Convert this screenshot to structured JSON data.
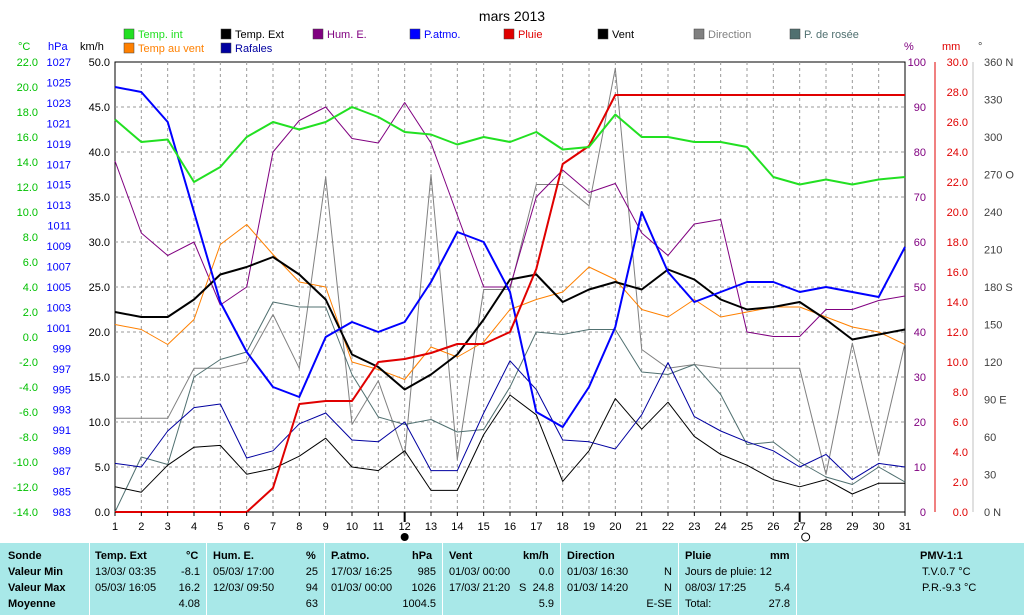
{
  "title": "mars 2013",
  "unit_labels": {
    "celsius": "°C",
    "hpa": "hPa",
    "kmh": "km/h",
    "percent": "%",
    "mm": "mm",
    "deg": "°"
  },
  "colors": {
    "temp_int": "#22e022",
    "temp_ext": "#000000",
    "hum_e": "#800080",
    "p_atmo": "#0000ff",
    "pluie": "#e00000",
    "vent": "#000000",
    "direction": "#808080",
    "p_rosee": "#507070",
    "temp_vent": "#ff8000",
    "rafales": "#0000a0",
    "grid": "#9a9a9a",
    "axis_celsius": "#00c000",
    "axis_hpa": "#0000ff",
    "axis_percent": "#800080",
    "axis_mm": "#e00000",
    "axis_deg": "#404040"
  },
  "legend": [
    {
      "label": "Temp. int",
      "color": "#22e022"
    },
    {
      "label": "Temp. Ext",
      "color": "#000000"
    },
    {
      "label": "Hum. E.",
      "color": "#800080"
    },
    {
      "label": "P.atmo.",
      "color": "#0000ff"
    },
    {
      "label": "Pluie",
      "color": "#e00000"
    },
    {
      "label": "Vent",
      "color": "#000000"
    },
    {
      "label": "Direction",
      "color": "#808080"
    },
    {
      "label": "P. de rosée",
      "color": "#507070"
    },
    {
      "label": "Temp au vent",
      "color": "#ff8000"
    },
    {
      "label": "Rafales",
      "color": "#0000a0"
    }
  ],
  "chart_data": {
    "type": "line",
    "title": "mars 2013",
    "x": [
      1,
      2,
      3,
      4,
      5,
      6,
      7,
      8,
      9,
      10,
      11,
      12,
      13,
      14,
      15,
      16,
      17,
      18,
      19,
      20,
      21,
      22,
      23,
      24,
      25,
      26,
      27,
      28,
      29,
      30,
      31
    ],
    "grid": true,
    "axes": {
      "celsius": {
        "range": [
          -14,
          22
        ],
        "ticks": [
          "22.0",
          "20.0",
          "18.0",
          "16.0",
          "14.0",
          "12.0",
          "10.0",
          "8.0",
          "6.0",
          "4.0",
          "2.0",
          "0.0",
          "-2.0",
          "-4.0",
          "-6.0",
          "-8.0",
          "-10.0",
          "-12.0",
          "-14.0"
        ]
      },
      "hpa": {
        "range": [
          983,
          1028
        ],
        "ticks": [
          "1027",
          "1025",
          "1023",
          "1021",
          "1019",
          "1017",
          "1015",
          "1013",
          "1011",
          "1009",
          "1007",
          "1005",
          "1003",
          "1001",
          "999",
          "997",
          "995",
          "993",
          "991",
          "989",
          "987",
          "985",
          "983"
        ]
      },
      "kmh": {
        "range": [
          0,
          50
        ],
        "ticks": [
          "50.0",
          "45.0",
          "40.0",
          "35.0",
          "30.0",
          "25.0",
          "20.0",
          "15.0",
          "10.0",
          "5.0",
          "0.0"
        ]
      },
      "percent": {
        "range": [
          0,
          100
        ],
        "ticks": [
          "100",
          "90",
          "80",
          "70",
          "60",
          "50",
          "40",
          "30",
          "20",
          "10",
          "0"
        ]
      },
      "mm": {
        "range": [
          0,
          30
        ],
        "ticks": [
          "30.0",
          "28.0",
          "26.0",
          "24.0",
          "22.0",
          "20.0",
          "18.0",
          "16.0",
          "14.0",
          "12.0",
          "10.0",
          "8.0",
          "6.0",
          "4.0",
          "2.0",
          "0.0"
        ]
      },
      "deg": {
        "range": [
          0,
          360
        ],
        "ticks": [
          "360 N",
          "330",
          "300",
          "270 O",
          "240",
          "210",
          "180 S",
          "150",
          "120",
          "90 E",
          "60",
          "30",
          "0 N"
        ]
      }
    },
    "series": [
      {
        "name": "Temp. int",
        "axis": "celsius",
        "values": [
          17.4,
          15.6,
          15.8,
          12.4,
          13.6,
          16.0,
          17.2,
          16.6,
          17.2,
          18.4,
          17.6,
          16.4,
          16.2,
          15.4,
          16.0,
          15.6,
          16.4,
          15.0,
          15.2,
          17.8,
          16.0,
          16.0,
          15.6,
          15.6,
          15.2,
          12.8,
          12.2,
          12.6,
          12.2,
          12.6,
          12.8
        ]
      },
      {
        "name": "Temp. Ext",
        "axis": "celsius",
        "values": [
          2.0,
          1.6,
          1.6,
          3.0,
          5.0,
          5.6,
          6.4,
          5.0,
          3.0,
          -1.4,
          -2.4,
          -4.2,
          -3.0,
          -1.4,
          1.4,
          4.6,
          5.0,
          2.8,
          3.8,
          4.4,
          3.8,
          5.4,
          4.6,
          3.0,
          2.2,
          2.4,
          2.8,
          1.4,
          -0.2,
          0.2,
          0.6
        ]
      },
      {
        "name": "Hum. E.",
        "axis": "percent",
        "values": [
          78,
          62,
          57,
          60,
          46,
          50,
          80,
          87,
          90,
          83,
          82,
          91,
          82,
          66,
          50,
          50,
          70,
          76,
          71,
          73,
          62,
          57,
          64,
          65,
          40,
          39,
          39,
          45,
          45,
          47,
          48
        ]
      },
      {
        "name": "P.atmo.",
        "axis": "hpa",
        "values": [
          1025.5,
          1025.0,
          1022.0,
          1013.0,
          1004.0,
          999.0,
          995.5,
          994.5,
          1000.5,
          1002.0,
          1001.0,
          1002.0,
          1006.0,
          1011.0,
          1010.0,
          1005.0,
          993.0,
          991.5,
          995.5,
          1001.5,
          1013.0,
          1007.0,
          1004.0,
          1005.0,
          1006.0,
          1006.0,
          1005.0,
          1005.5,
          1005.0,
          1004.5,
          1009.5
        ]
      },
      {
        "name": "Pluie",
        "axis": "mm",
        "values": [
          0,
          0,
          0,
          0,
          0,
          0,
          1.6,
          7.2,
          7.4,
          7.4,
          10.0,
          10.2,
          10.6,
          11.2,
          11.2,
          12.0,
          16.2,
          23.2,
          24.4,
          27.8,
          27.8,
          27.8,
          27.8,
          27.8,
          27.8,
          27.8,
          27.8,
          27.8,
          27.8,
          27.8,
          27.8
        ]
      },
      {
        "name": "Vent",
        "axis": "kmh",
        "values": [
          2.8,
          2.2,
          5.2,
          7.2,
          7.4,
          4.2,
          4.8,
          6.2,
          8.2,
          5.0,
          4.6,
          6.8,
          2.4,
          2.4,
          8.6,
          13.0,
          10.8,
          3.4,
          6.8,
          12.6,
          9.2,
          12.2,
          8.4,
          6.4,
          5.2,
          3.6,
          2.8,
          3.6,
          2.0,
          3.2,
          3.2
        ]
      },
      {
        "name": "Direction",
        "axis": "deg",
        "values": [
          75,
          75,
          75,
          115,
          115,
          120,
          158,
          115,
          268,
          70,
          105,
          45,
          270,
          42,
          178,
          178,
          262,
          262,
          245,
          355,
          130,
          115,
          118,
          115,
          115,
          115,
          115,
          30,
          135,
          45,
          135
        ]
      },
      {
        "name": "P. de rosée",
        "axis": "celsius",
        "values": [
          -14.0,
          -9.6,
          -10.2,
          -3.2,
          -1.8,
          -1.2,
          2.8,
          2.4,
          2.4,
          -3.0,
          -6.4,
          -7.0,
          -6.6,
          -7.6,
          -7.4,
          -4.0,
          0.4,
          0.2,
          0.6,
          0.6,
          -2.8,
          -3.0,
          -2.2,
          -4.6,
          -8.6,
          -8.4,
          -10.0,
          -11.2,
          -11.8,
          -10.4,
          -11.6
        ]
      },
      {
        "name": "Temp au vent",
        "axis": "celsius",
        "values": [
          1.0,
          0.6,
          -0.6,
          1.4,
          7.4,
          9.0,
          6.6,
          4.4,
          4.0,
          -2.0,
          -2.6,
          -3.4,
          -0.8,
          -1.6,
          -0.4,
          2.2,
          3.0,
          3.6,
          5.6,
          4.6,
          2.2,
          1.6,
          3.0,
          1.6,
          2.0,
          2.4,
          2.4,
          1.6,
          0.8,
          0.4,
          -0.6
        ]
      },
      {
        "name": "Rafales",
        "axis": "kmh",
        "values": [
          5.4,
          5.0,
          9.0,
          11.6,
          12.0,
          6.0,
          6.8,
          9.8,
          11.0,
          8.0,
          7.8,
          10.0,
          4.6,
          4.6,
          11.0,
          16.8,
          13.6,
          8.0,
          7.8,
          7.0,
          10.8,
          16.6,
          10.6,
          9.0,
          7.8,
          6.8,
          5.0,
          6.4,
          3.6,
          5.4,
          5.0
        ]
      }
    ]
  },
  "footer": {
    "row_labels": [
      "Sonde",
      "Valeur Min",
      "Valeur Max",
      "Moyenne"
    ],
    "temp_ext": {
      "header": "Temp. Ext",
      "unit": "°C",
      "min_date": "13/03/  03:35",
      "min_val": "-8.1",
      "max_date": "05/03/  16:05",
      "max_val": "16.2",
      "avg": "4.08"
    },
    "hum_e": {
      "header": "Hum. E.",
      "unit": "%",
      "min_date": "05/03/  17:00",
      "min_val": "25",
      "max_date": "12/03/  09:50",
      "max_val": "94",
      "avg": "63"
    },
    "p_atmo": {
      "header": "P.atmo.",
      "unit": "hPa",
      "min_date": "17/03/  16:25",
      "min_val": "985",
      "max_date": "01/03/  00:00",
      "max_val": "1026",
      "avg": "1004.5"
    },
    "vent": {
      "header": "Vent",
      "unit": "km/h",
      "min_date": "01/03/  00:00",
      "min_val": "0.0",
      "max_date": "17/03/  21:20",
      "max_dir": "S",
      "max_val": "24.8",
      "avg": "5.9"
    },
    "direction": {
      "header": "Direction",
      "min_date": "01/03/  16:30",
      "min_val": "N",
      "max_date": "01/03/  14:20",
      "max_val": "N",
      "avg": "E-SE"
    },
    "pluie": {
      "header": "Pluie",
      "unit": "mm",
      "days_label": "Jours de pluie: 12",
      "max_date": "08/03/  17:25",
      "max_val": "5.4",
      "total_label": "Total:",
      "total_val": "27.8"
    },
    "pmv": {
      "header": "PMV-1:1",
      "tv": "T.V.0.7 °C",
      "pr": "P.R.-9.3 °C"
    }
  }
}
